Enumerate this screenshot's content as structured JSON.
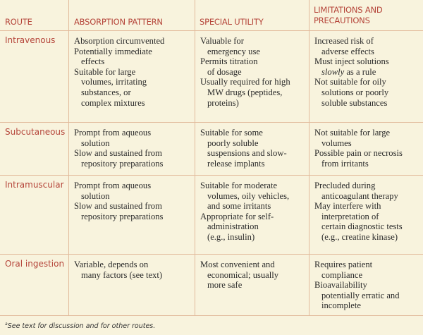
{
  "headers": [
    "ROUTE",
    "ABSORPTION PATTERN",
    "SPECIAL UTILITY",
    "LIMITATIONS AND PRECAUTIONS"
  ],
  "header_last_lines": [
    "LIMITATIONS AND",
    "PRECAUTIONS"
  ],
  "rows": [
    {
      "route": "Intravenous",
      "cells": [
        [
          [
            "Absorption circumvented"
          ],
          [
            "Potentially immediate",
            "effects"
          ],
          [
            "Suitable for large",
            "volumes, irritating",
            "substances, or",
            "complex mixtures"
          ]
        ],
        [
          [
            "Valuable for",
            "emergency use"
          ],
          [
            "Permits titration",
            "of dosage"
          ],
          [
            "Usually required for high",
            "MW drugs (peptides,",
            "proteins)"
          ]
        ],
        [
          [
            "Increased risk of",
            "adverse effects"
          ],
          [
            "Must inject solutions",
            "*slowly* as a rule"
          ],
          [
            "Not suitable for oily",
            "solutions or poorly",
            "soluble substances"
          ]
        ]
      ]
    },
    {
      "route": "Subcutaneous",
      "cells": [
        [
          [
            "Prompt from aqueous",
            "solution"
          ],
          [
            "Slow and sustained from",
            "repository preparations"
          ]
        ],
        [
          [
            "Suitable for some",
            "poorly soluble",
            "suspensions and slow-",
            "release implants"
          ]
        ],
        [
          [
            "Not suitable for large",
            "volumes"
          ],
          [
            "Possible pain or necrosis",
            "from irritants"
          ]
        ]
      ]
    },
    {
      "route": "Intramuscular",
      "cells": [
        [
          [
            "Prompt from aqueous",
            "solution"
          ],
          [
            "Slow and sustained from",
            "repository preparations"
          ]
        ],
        [
          [
            "Suitable for moderate",
            "volumes, oily vehicles,",
            "and some irritants"
          ],
          [
            "Appropriate for self-",
            "administration",
            "(e.g., insulin)"
          ]
        ],
        [
          [
            "Precluded during",
            "anticoagulant therapy"
          ],
          [
            "May interfere with",
            "interpretation of",
            "certain diagnostic tests",
            "(e.g., creatine kinase)"
          ]
        ]
      ]
    },
    {
      "route": "Oral ingestion",
      "cells": [
        [
          [
            "Variable, depends on",
            "many factors (see text)"
          ]
        ],
        [
          [
            "Most convenient and",
            "economical; usually",
            "more safe"
          ]
        ],
        [
          [
            "Requires patient",
            "compliance"
          ],
          [
            "Bioavailability",
            "potentially erratic and",
            "incomplete"
          ]
        ]
      ]
    }
  ],
  "footnote_marker": "a",
  "footnote": "See text for discussion and for other routes.",
  "colors": {
    "background": "#f8f3dd",
    "rule": "#e2bb9c",
    "heading": "#b5453a"
  }
}
